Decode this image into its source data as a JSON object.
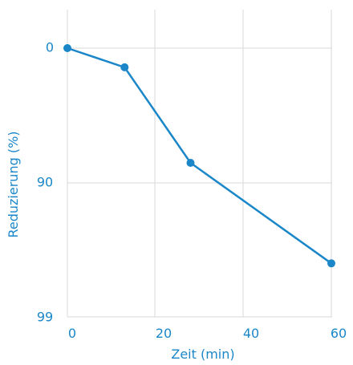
{
  "chart_data": {
    "type": "line",
    "title": "",
    "xlabel": "Zeit (min)",
    "ylabel": "Reduzierung (%)",
    "x_ticks": [
      "0",
      "20",
      "40",
      "60"
    ],
    "y_ticks": [
      "0",
      "90",
      "99"
    ],
    "y_scale": "log-reduction",
    "x": [
      0,
      13,
      28,
      60
    ],
    "y": [
      0,
      28,
      86,
      97.5
    ],
    "xlim": [
      0,
      60
    ],
    "ylim": [
      0,
      99
    ],
    "grid": true,
    "colors": {
      "line": "#1b87c9",
      "grid": "#d9d9d9",
      "text": "#1b87c9"
    }
  }
}
